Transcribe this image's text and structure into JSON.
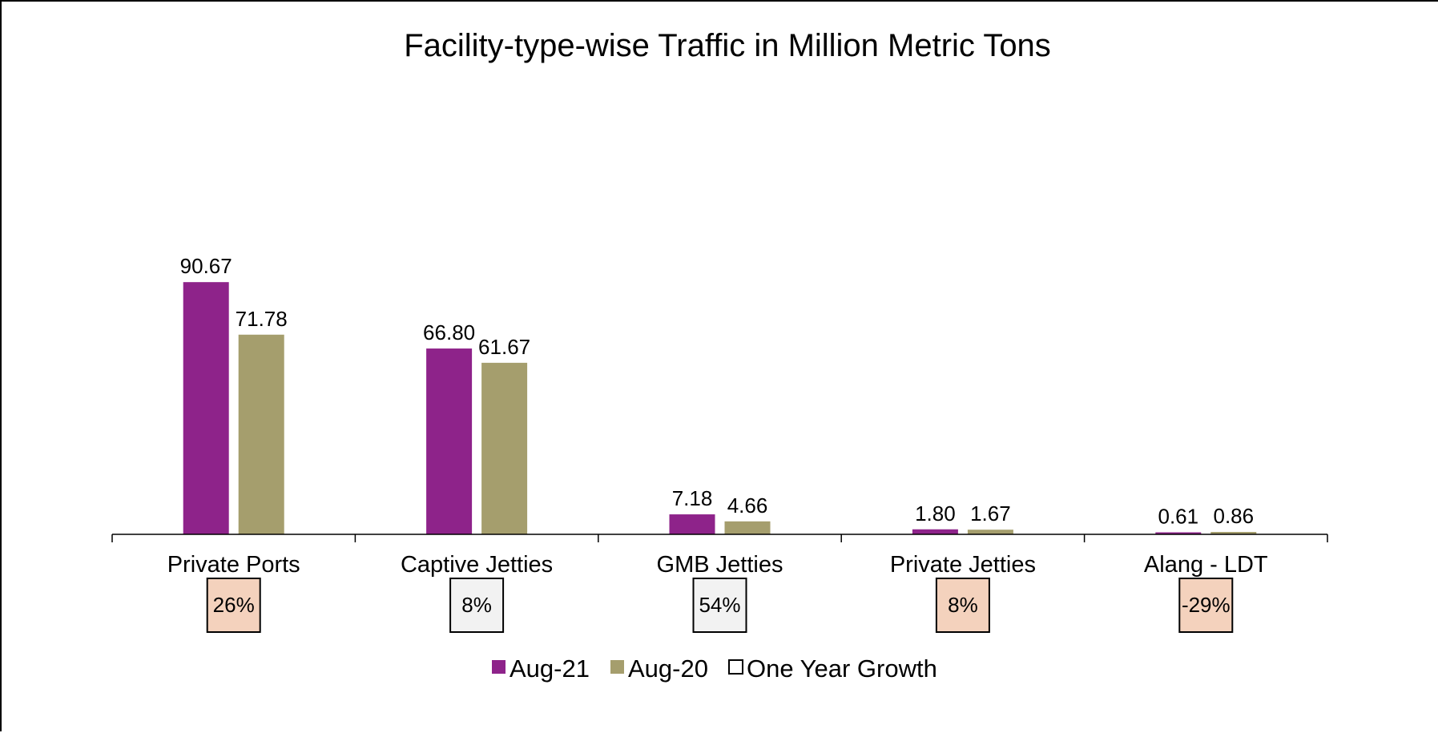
{
  "chart_data": {
    "type": "bar",
    "title": "Facility-type-wise Traffic in Million Metric Tons",
    "categories": [
      "Private Ports",
      "Captive Jetties",
      "GMB Jetties",
      "Private Jetties",
      "Alang - LDT"
    ],
    "series": [
      {
        "name": "Aug-21",
        "color": "#8e238a",
        "values": [
          90.67,
          66.8,
          7.18,
          1.8,
          0.61
        ],
        "labels": [
          "90.67",
          "66.80",
          "7.18",
          "1.80",
          "0.61"
        ]
      },
      {
        "name": "Aug-20",
        "color": "#a59e6d",
        "values": [
          71.78,
          61.67,
          4.66,
          1.67,
          0.86
        ],
        "labels": [
          "71.78",
          "61.67",
          "4.66",
          "1.67",
          "0.86"
        ]
      }
    ],
    "growth": {
      "name": "One Year Growth",
      "values": [
        "26%",
        "8%",
        "54%",
        "8%",
        "-29%"
      ],
      "colors": [
        "#f4d2bd",
        "#f2f2f2",
        "#f2f2f2",
        "#f4d2bd",
        "#f4d2bd"
      ]
    },
    "xlabel": "",
    "ylabel": "",
    "ylim": [
      0,
      180
    ],
    "grid": false,
    "legend_position": "bottom"
  }
}
